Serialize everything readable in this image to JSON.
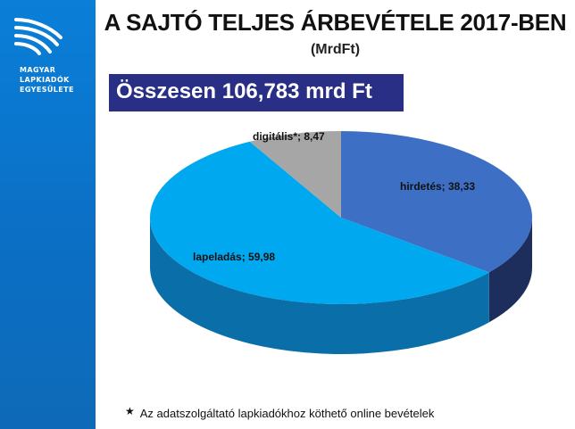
{
  "logo": {
    "line1": "MAGYAR",
    "line2": "LAPKIADÓK",
    "line3": "EGYESÜLETE"
  },
  "header": {
    "title": "A SAJTÓ TELJES ÁRBEVÉTELE 2017-BEN",
    "subtitle": "(MrdFt)"
  },
  "total": {
    "text": "Összesen 106,783 mrd Ft"
  },
  "chart_data": {
    "type": "pie",
    "categories": [
      "hirdetés",
      "lapeladás",
      "digitális*"
    ],
    "values": [
      38.33,
      59.98,
      8.47
    ],
    "labels": [
      "hirdetés; 38,33",
      "lapeladás; 59,98",
      "digitális*; 8,47"
    ],
    "colors": [
      "#3d6fc4",
      "#00a8ef",
      "#a6a6a6"
    ],
    "side_colors": [
      "#1e2e5c",
      "#0a6fa8",
      "#707070"
    ],
    "style": "3d"
  },
  "footnote": {
    "star": "★",
    "text": "Az adatszolgáltató lapkiadókhoz köthető online bevételek"
  }
}
